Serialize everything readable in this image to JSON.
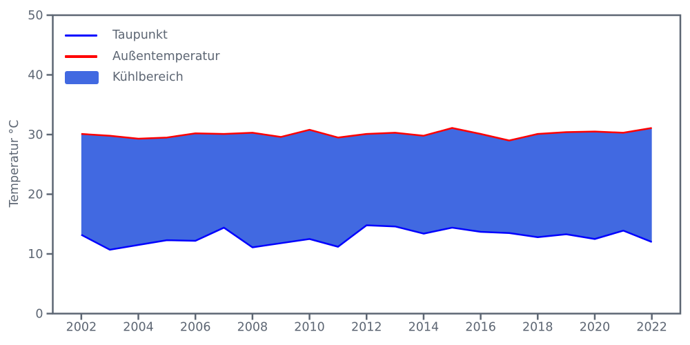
{
  "chart_data": {
    "type": "area",
    "title": "",
    "xlabel": "",
    "ylabel": "Temperatur °C",
    "x": [
      2002,
      2003,
      2004,
      2005,
      2006,
      2007,
      2008,
      2009,
      2010,
      2011,
      2012,
      2013,
      2014,
      2015,
      2016,
      2017,
      2018,
      2019,
      2020,
      2021,
      2022
    ],
    "series": [
      {
        "name": "Taupunkt",
        "type": "line",
        "color": "#0000ff",
        "values": [
          13.2,
          10.7,
          11.5,
          12.3,
          12.2,
          14.4,
          11.1,
          11.8,
          12.5,
          11.2,
          14.8,
          14.6,
          13.4,
          14.4,
          13.7,
          13.5,
          12.8,
          13.3,
          12.5,
          13.9,
          12.0
        ]
      },
      {
        "name": "Außentemperatur",
        "type": "line",
        "color": "#ff0000",
        "values": [
          30.1,
          29.8,
          29.3,
          29.5,
          30.2,
          30.1,
          30.3,
          29.6,
          30.8,
          29.5,
          30.1,
          30.3,
          29.8,
          31.1,
          30.1,
          29.0,
          30.1,
          30.4,
          30.5,
          30.3,
          31.1
        ]
      }
    ],
    "fill_between": {
      "label": "Kühlbereich",
      "color": "#4169e1",
      "lower": 0,
      "upper": 1
    },
    "xlim": [
      2001,
      2023
    ],
    "ylim": [
      0,
      50
    ],
    "x_ticks": [
      2002,
      2004,
      2006,
      2008,
      2010,
      2012,
      2014,
      2016,
      2018,
      2020,
      2022
    ],
    "y_ticks": [
      0,
      10,
      20,
      30,
      40,
      50
    ],
    "grid": false,
    "axis_color": "#5d6673",
    "line_width": 2.5,
    "legend": {
      "position": "upper-left",
      "entries": [
        {
          "label": "Taupunkt",
          "swatch": "line",
          "color": "#0000ff"
        },
        {
          "label": "Außentemperatur",
          "swatch": "line",
          "color": "#ff0000"
        },
        {
          "label": "Kühlbereich",
          "swatch": "patch",
          "color": "#4169e1"
        }
      ]
    }
  }
}
